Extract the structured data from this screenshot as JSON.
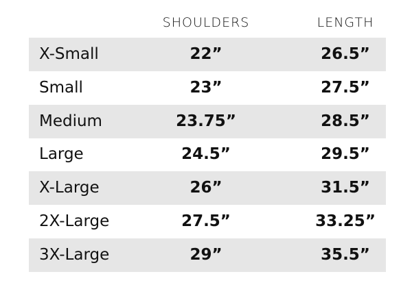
{
  "table": {
    "headers": [
      "SHOULDERS",
      "LENGTH"
    ],
    "rows": [
      [
        "X-Small",
        "22”",
        "26.5”"
      ],
      [
        "Small",
        "23”",
        "27.5”"
      ],
      [
        "Medium",
        "23.75”",
        "28.5”"
      ],
      [
        "Large",
        "24.5”",
        "29.5”"
      ],
      [
        "X-Large",
        "26”",
        "31.5”"
      ],
      [
        "2X-Large",
        "27.5”",
        "33.25”"
      ],
      [
        "3X-Large",
        "29”",
        "35.5”"
      ]
    ]
  }
}
